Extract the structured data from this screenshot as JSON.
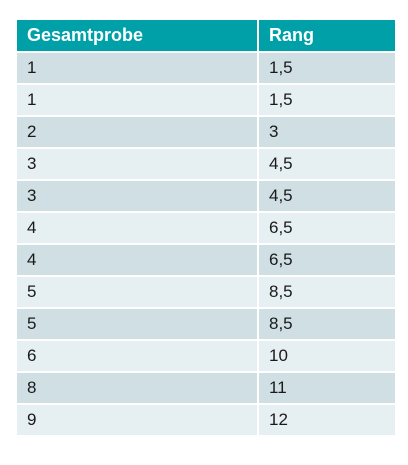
{
  "table": {
    "headers": {
      "gesamtprobe": "Gesamtprobe",
      "rang": "Rang"
    },
    "rows": [
      {
        "gesamtprobe": "1",
        "rang": "1,5"
      },
      {
        "gesamtprobe": "1",
        "rang": "1,5"
      },
      {
        "gesamtprobe": "2",
        "rang": "3"
      },
      {
        "gesamtprobe": "3",
        "rang": "4,5"
      },
      {
        "gesamtprobe": "3",
        "rang": "4,5"
      },
      {
        "gesamtprobe": "4",
        "rang": "6,5"
      },
      {
        "gesamtprobe": "4",
        "rang": "6,5"
      },
      {
        "gesamtprobe": "5",
        "rang": "8,5"
      },
      {
        "gesamtprobe": "5",
        "rang": "8,5"
      },
      {
        "gesamtprobe": "6",
        "rang": "10"
      },
      {
        "gesamtprobe": "8",
        "rang": "11"
      },
      {
        "gesamtprobe": "9",
        "rang": "12"
      }
    ],
    "colors": {
      "header_bg": "#00a0a8",
      "row_dark": "#cfdfe3",
      "row_light": "#e6eff1"
    }
  }
}
